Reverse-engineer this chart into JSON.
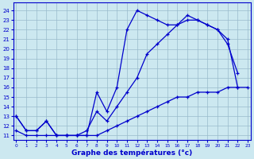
{
  "bg_color": "#cce8f0",
  "line_color": "#0000cc",
  "grid_color": "#99bbcc",
  "xlabel": "Graphe des températures (°c)",
  "xlabel_color": "#0000cc",
  "ylabel_ticks": [
    11,
    12,
    13,
    14,
    15,
    16,
    17,
    18,
    19,
    20,
    21,
    22,
    23,
    24
  ],
  "xlabel_ticks": [
    0,
    1,
    2,
    3,
    4,
    5,
    6,
    7,
    8,
    9,
    10,
    11,
    12,
    13,
    14,
    15,
    16,
    17,
    18,
    19,
    20,
    21,
    22,
    23
  ],
  "ylim": [
    10.5,
    24.8
  ],
  "xlim": [
    -0.3,
    23.3
  ],
  "line1_x": [
    0,
    1,
    2,
    3,
    4,
    5,
    6,
    7,
    8,
    9,
    10,
    11,
    12,
    13,
    14,
    15,
    16,
    17,
    18,
    19,
    20,
    21,
    22
  ],
  "line1_y": [
    13.0,
    11.5,
    11.5,
    12.5,
    11.0,
    11.0,
    11.0,
    11.0,
    15.5,
    13.5,
    16.0,
    22.0,
    24.0,
    23.5,
    23.0,
    22.5,
    22.5,
    23.5,
    23.0,
    22.5,
    22.0,
    20.5,
    17.5
  ],
  "line2_x": [
    0,
    1,
    2,
    3,
    4,
    5,
    6,
    7,
    8,
    9,
    10,
    11,
    12,
    13,
    14,
    15,
    16,
    17,
    18,
    19,
    20,
    21,
    22
  ],
  "line2_y": [
    13.0,
    11.5,
    11.5,
    12.5,
    11.0,
    11.0,
    11.0,
    11.5,
    13.5,
    12.5,
    14.0,
    15.5,
    17.0,
    19.5,
    20.5,
    21.5,
    22.5,
    23.0,
    23.0,
    22.5,
    22.0,
    21.0,
    16.0
  ],
  "line3_x": [
    0,
    1,
    2,
    3,
    4,
    5,
    6,
    7,
    8,
    9,
    10,
    11,
    12,
    13,
    14,
    15,
    16,
    17,
    18,
    19,
    20,
    21,
    22,
    23
  ],
  "line3_y": [
    11.5,
    11.0,
    11.0,
    11.0,
    11.0,
    11.0,
    11.0,
    11.0,
    11.0,
    11.5,
    12.0,
    12.5,
    13.0,
    13.5,
    14.0,
    14.5,
    15.0,
    15.0,
    15.5,
    15.5,
    15.5,
    16.0,
    16.0,
    16.0
  ]
}
